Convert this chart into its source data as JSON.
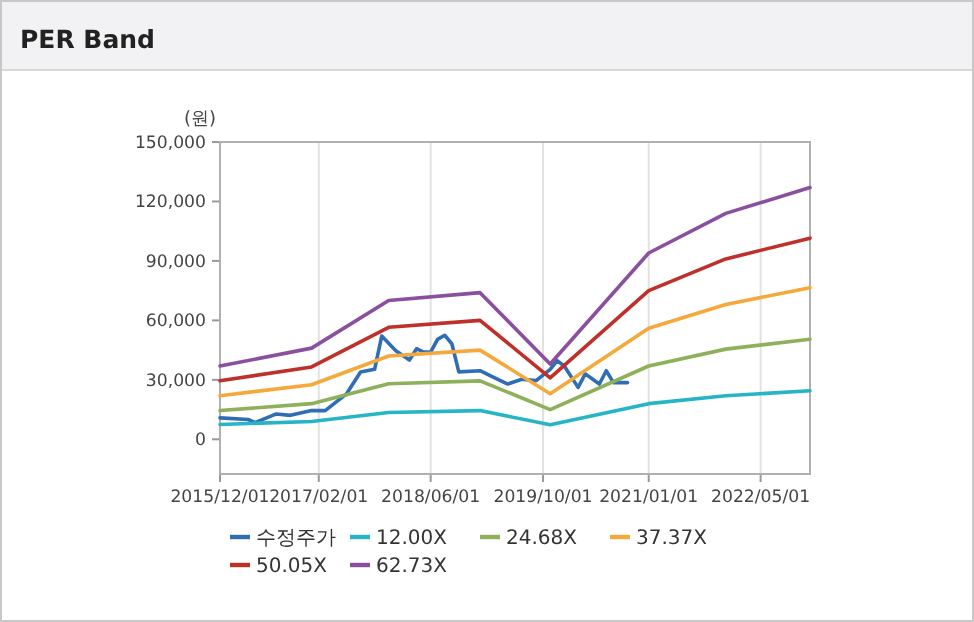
{
  "chart_data": {
    "type": "line",
    "title": "PER Band",
    "ylabel": "(원)",
    "xlim": [
      "2015-12-01",
      "2022-12-01"
    ],
    "ylim": [
      -17500,
      150000
    ],
    "xticks": [
      {
        "value": "2015-12-01",
        "label": "2015/12/01"
      },
      {
        "value": "2017-02-01",
        "label": "2017/02/01"
      },
      {
        "value": "2018-06-01",
        "label": "2018/06/01"
      },
      {
        "value": "2019-10-01",
        "label": "2019/10/01"
      },
      {
        "value": "2021-01-01",
        "label": "2021/01/01"
      },
      {
        "value": "2022-05-01",
        "label": "2022/05/01"
      }
    ],
    "yticks": [
      0,
      {
        "value": 30000,
        "label": "30,000"
      },
      {
        "value": 60000,
        "label": "60,000"
      },
      {
        "value": 90000,
        "label": "90,000"
      },
      {
        "value": 120000,
        "label": "120,000"
      },
      {
        "value": 150000,
        "label": "150,000"
      }
    ],
    "grid": "x",
    "legend": "bottom",
    "marker": "none",
    "series": [
      {
        "name": "수정주가",
        "color": "#2f6db4",
        "x": [
          "2015-12",
          "2016-04",
          "2016-05",
          "2016-08",
          "2016-10",
          "2017-01",
          "2017-03",
          "2017-06",
          "2017-08",
          "2017-10",
          "2017-11",
          "2018-01",
          "2018-03",
          "2018-04",
          "2018-05",
          "2018-06",
          "2018-07",
          "2018-08",
          "2018-09",
          "2018-10",
          "2019-01",
          "2019-03",
          "2019-05",
          "2019-07",
          "2019-09",
          "2019-11",
          "2019-12",
          "2020-01",
          "2020-03",
          "2020-04",
          "2020-06",
          "2020-07",
          "2020-08",
          "2020-10"
        ],
        "values": [
          10800,
          10000,
          8400,
          12800,
          12100,
          14500,
          14500,
          22900,
          34000,
          35300,
          52100,
          44700,
          40000,
          45700,
          44000,
          44000,
          50400,
          52500,
          48100,
          34000,
          34600,
          31300,
          27900,
          30300,
          29600,
          35300,
          39700,
          37000,
          26200,
          33000,
          27900,
          34600,
          28600,
          28600
        ]
      },
      {
        "name": "12.00X",
        "color": "#26b5c6",
        "x": [
          "2015-12",
          "2017-01",
          "2017-12",
          "2019-01",
          "2019-11",
          "2021-01",
          "2021-12",
          "2022-12"
        ],
        "values": [
          7500,
          9000,
          13500,
          14500,
          7300,
          18000,
          22000,
          24500
        ]
      },
      {
        "name": "24.68X",
        "color": "#8db05a",
        "x": [
          "2015-12",
          "2017-01",
          "2017-12",
          "2019-01",
          "2019-11",
          "2021-01",
          "2021-12",
          "2022-12"
        ],
        "values": [
          14500,
          18000,
          28000,
          29500,
          15000,
          37000,
          45500,
          50500
        ]
      },
      {
        "name": "37.37X",
        "color": "#f5a93a",
        "x": [
          "2015-12",
          "2017-01",
          "2017-12",
          "2019-01",
          "2019-11",
          "2021-01",
          "2021-12",
          "2022-12"
        ],
        "values": [
          22000,
          27500,
          42000,
          45000,
          23000,
          56000,
          68000,
          76500
        ]
      },
      {
        "name": "50.05X",
        "color": "#c0302a",
        "x": [
          "2015-12",
          "2017-01",
          "2017-12",
          "2019-01",
          "2019-11",
          "2021-01",
          "2021-12",
          "2022-12"
        ],
        "values": [
          29500,
          36500,
          56500,
          60000,
          31000,
          75000,
          91000,
          101500
        ]
      },
      {
        "name": "62.73X",
        "color": "#8a4f9e",
        "x": [
          "2015-12",
          "2017-01",
          "2017-12",
          "2019-01",
          "2019-11",
          "2021-01",
          "2021-12",
          "2022-12"
        ],
        "values": [
          37000,
          46000,
          70000,
          74000,
          38000,
          94000,
          114000,
          127000
        ]
      }
    ]
  }
}
